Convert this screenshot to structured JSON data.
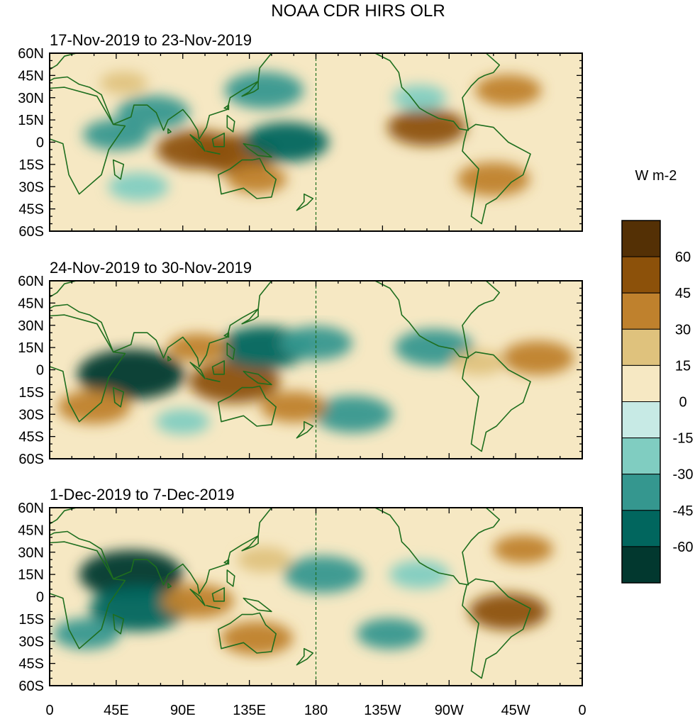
{
  "chart_data": {
    "type": "heatmap",
    "title": "NOAA CDR HIRS OLR",
    "colorbar": {
      "units": "W m-2",
      "colors": [
        "#02382f",
        "#01665e",
        "#35978f",
        "#80cdc1",
        "#c7eae5",
        "#f6e8c3",
        "#dfc27d",
        "#bf812d",
        "#8c510a",
        "#543005"
      ],
      "tick_labels": [
        "-60",
        "-45",
        "-30",
        "-15",
        "0",
        "15",
        "30",
        "45",
        "60"
      ]
    },
    "x_ticks": [
      "0",
      "45E",
      "90E",
      "135E",
      "180",
      "135W",
      "90W",
      "45W",
      "0"
    ],
    "y_ticks": [
      "60N",
      "45N",
      "30N",
      "15N",
      "0",
      "15S",
      "30S",
      "45S",
      "60S"
    ],
    "x_range_deg_east": [
      0,
      360
    ],
    "y_range_deg_north": [
      -60,
      60
    ],
    "land_outline_color": "#1e6e1e",
    "dateline_deg_east": 180,
    "panels": [
      {
        "label": "17-Nov-2019 to 23-Nov-2019",
        "anomalies": [
          {
            "lon": 100,
            "lat": -5,
            "value": 48
          },
          {
            "lon": 125,
            "lat": -8,
            "value": 50
          },
          {
            "lon": 140,
            "lat": -25,
            "value": 30
          },
          {
            "lon": 50,
            "lat": 40,
            "value": 20
          },
          {
            "lon": 70,
            "lat": 20,
            "value": -40
          },
          {
            "lon": 45,
            "lat": 5,
            "value": -35
          },
          {
            "lon": 160,
            "lat": 0,
            "value": -50
          },
          {
            "lon": 145,
            "lat": 35,
            "value": -45
          },
          {
            "lon": 310,
            "lat": 35,
            "value": 35
          },
          {
            "lon": 300,
            "lat": -25,
            "value": 40
          },
          {
            "lon": 255,
            "lat": 10,
            "value": 45
          },
          {
            "lon": 250,
            "lat": 30,
            "value": -25
          },
          {
            "lon": 60,
            "lat": -30,
            "value": -30
          }
        ]
      },
      {
        "label": "24-Nov-2019 to 30-Nov-2019",
        "anomalies": [
          {
            "lon": 55,
            "lat": -3,
            "value": -68
          },
          {
            "lon": 125,
            "lat": -8,
            "value": 55
          },
          {
            "lon": 145,
            "lat": 15,
            "value": -55
          },
          {
            "lon": 180,
            "lat": 18,
            "value": -40
          },
          {
            "lon": 205,
            "lat": -30,
            "value": -45
          },
          {
            "lon": 165,
            "lat": -25,
            "value": 35
          },
          {
            "lon": 30,
            "lat": -25,
            "value": 40
          },
          {
            "lon": 260,
            "lat": 15,
            "value": -45
          },
          {
            "lon": 330,
            "lat": 8,
            "value": 40
          },
          {
            "lon": 290,
            "lat": 5,
            "value": 25
          },
          {
            "lon": 100,
            "lat": 15,
            "value": 30
          },
          {
            "lon": 90,
            "lat": -35,
            "value": -25
          }
        ]
      },
      {
        "label": "1-Dec-2019 to 7-Dec-2019",
        "anomalies": [
          {
            "lon": 55,
            "lat": 15,
            "value": -65
          },
          {
            "lon": 60,
            "lat": -8,
            "value": -60
          },
          {
            "lon": 140,
            "lat": -28,
            "value": 40
          },
          {
            "lon": 100,
            "lat": -3,
            "value": 40
          },
          {
            "lon": 185,
            "lat": 15,
            "value": -45
          },
          {
            "lon": 310,
            "lat": -10,
            "value": 45
          },
          {
            "lon": 320,
            "lat": 32,
            "value": 30
          },
          {
            "lon": 25,
            "lat": -25,
            "value": -35
          },
          {
            "lon": 250,
            "lat": 15,
            "value": -30
          },
          {
            "lon": 230,
            "lat": -25,
            "value": -35
          },
          {
            "lon": 145,
            "lat": 25,
            "value": 25
          }
        ]
      }
    ]
  }
}
